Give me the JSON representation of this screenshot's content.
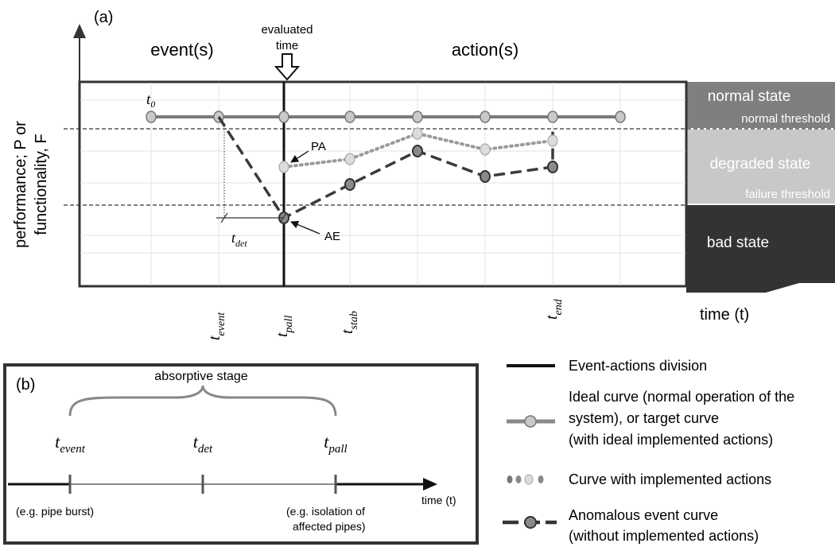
{
  "panel_a": {
    "label": "(a)",
    "y_axis_label_line1": "performance; P or",
    "y_axis_label_line2": "functionality, F",
    "x_axis_label": "time (t)",
    "region_events": "event(s)",
    "region_actions": "action(s)",
    "evaluated_time_line1": "evaluated",
    "evaluated_time_line2": "time",
    "t0_label": "t₀",
    "states": {
      "normal": "normal state",
      "normal_threshold": "normal threshold",
      "degraded": "degraded state",
      "failure_threshold": "failure threshold",
      "bad": "bad state"
    },
    "annotations": {
      "pa": "PA",
      "ae": "AE"
    },
    "time_labels": {
      "t_event": "t_event",
      "t_pall": "t_pall",
      "t_stab": "t_stab",
      "t_end": "t_end",
      "t_det": "t_det"
    },
    "colors": {
      "normal_band": "#7f7f7f",
      "degraded_band": "#c8c8c8",
      "bad_band": "#333333",
      "ideal_curve": "#7a7a7a",
      "actions_curve": "#9a9a9a",
      "anomalous_curve": "#3a3a3a"
    }
  },
  "panel_b": {
    "label": "(b)",
    "stage_label": "absorptive stage",
    "t_event": "t_event",
    "t_det": "t_det",
    "t_pall": "t_pall",
    "axis_label": "time (t)",
    "example_left": "(e.g. pipe burst)",
    "example_right_line1": "(e.g. isolation of",
    "example_right_line2": "affected pipes)"
  },
  "legend": {
    "division": "Event-actions division",
    "ideal_line1": "Ideal curve (normal operation of the",
    "ideal_line2": "system), or target curve",
    "ideal_line3": "(with ideal implemented actions)",
    "implemented": "Curve with implemented actions",
    "anomalous_line1": "Anomalous event curve",
    "anomalous_line2": "(without implemented actions)"
  }
}
